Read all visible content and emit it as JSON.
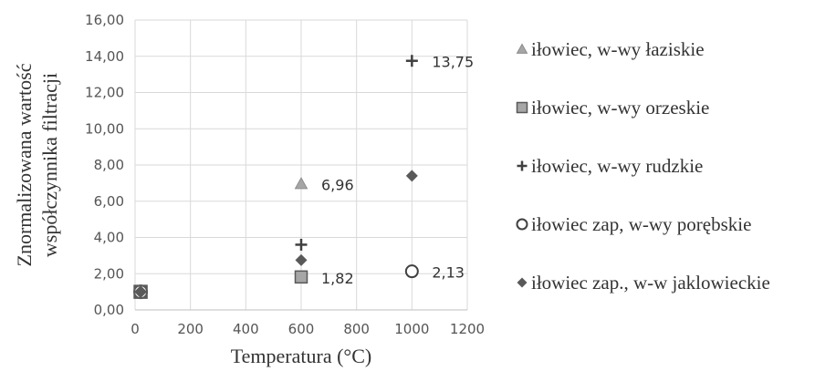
{
  "chart_data": {
    "type": "scatter",
    "xlabel": "Temperatura  (°C)",
    "ylabel": [
      "Znormalizowana wartość",
      "współczynnika filtracji"
    ],
    "xlim": [
      0,
      1200
    ],
    "ylim": [
      0,
      16
    ],
    "x_ticks": [
      "0",
      "200",
      "400",
      "600",
      "800",
      "1000",
      "1200"
    ],
    "y_ticks": [
      "0,00",
      "2,00",
      "4,00",
      "6,00",
      "8,00",
      "10,00",
      "12,00",
      "14,00",
      "16,00"
    ],
    "grid": true,
    "legend_position": "right",
    "series": [
      {
        "name": "iłowiec, w-wy łaziskie",
        "marker": "triangle",
        "color": "#a6a6a6",
        "points": [
          {
            "x": 20,
            "y": 1.0
          },
          {
            "x": 600,
            "y": 6.96,
            "label": "6,96"
          }
        ]
      },
      {
        "name": "iłowiec, w-wy orzeskie",
        "marker": "square",
        "color": "#a6a6a6",
        "points": [
          {
            "x": 20,
            "y": 1.0
          },
          {
            "x": 600,
            "y": 1.82,
            "label": "1,82"
          }
        ]
      },
      {
        "name": "iłowiec, w-wy rudzkie",
        "marker": "plus",
        "color": "#404040",
        "points": [
          {
            "x": 20,
            "y": 1.0
          },
          {
            "x": 600,
            "y": 3.6
          },
          {
            "x": 1000,
            "y": 13.75,
            "label": "13,75"
          }
        ]
      },
      {
        "name": "iłowiec zap, w-wy porębskie",
        "marker": "circle",
        "color": "#404040",
        "points": [
          {
            "x": 20,
            "y": 1.0
          },
          {
            "x": 1000,
            "y": 2.13,
            "label": "2,13"
          }
        ]
      },
      {
        "name": "iłowiec zap., w-w jaklowieckie",
        "marker": "diamond",
        "color": "#595959",
        "points": [
          {
            "x": 20,
            "y": 1.0
          },
          {
            "x": 600,
            "y": 2.75
          },
          {
            "x": 1000,
            "y": 7.4
          }
        ]
      }
    ]
  }
}
